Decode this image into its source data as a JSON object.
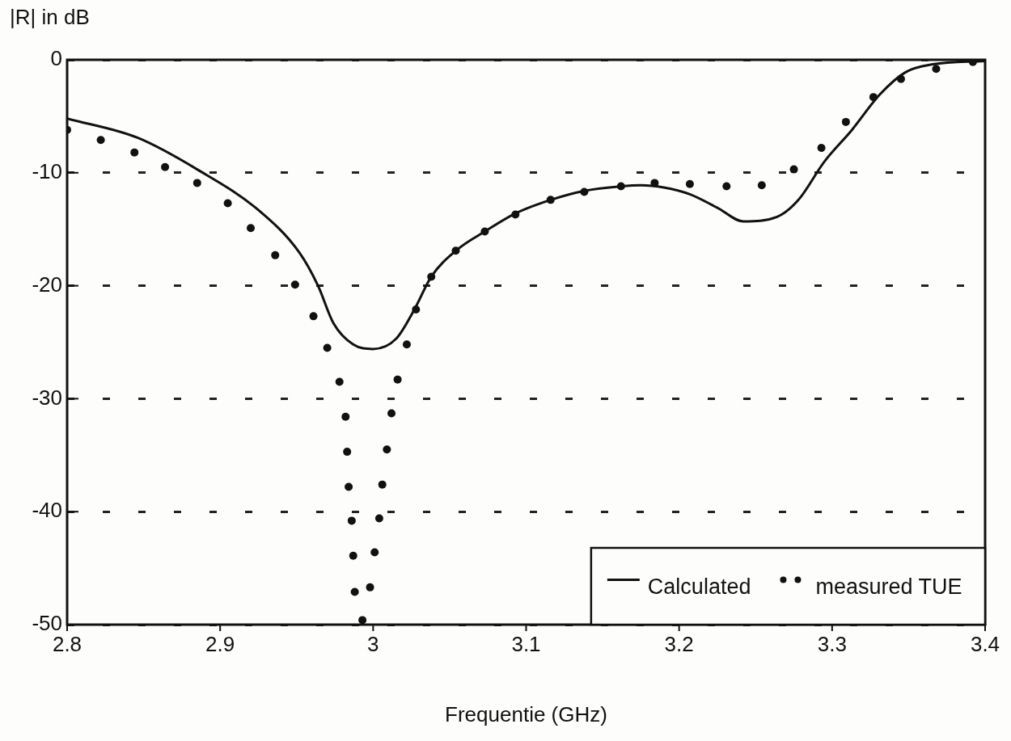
{
  "chart_data": {
    "type": "line",
    "xlabel": "Frequentie (GHz)",
    "ylabel": "|R| in dB",
    "xlim": [
      2.8,
      3.4
    ],
    "xticks": [
      2.8,
      2.9,
      3,
      3.1,
      3.2,
      3.3,
      3.4
    ],
    "ylim": [
      -50,
      0
    ],
    "yticks": [
      -50,
      -40,
      -30,
      -20,
      -10,
      0
    ],
    "grid": "y",
    "legend": "bottom right",
    "series": [
      {
        "name": "Calculated",
        "color": "#111111",
        "marker": "none",
        "line_style": "solid",
        "x": [
          2.8,
          2.846,
          2.885,
          2.925,
          2.952,
          2.964,
          2.974,
          2.987,
          3.0,
          3.015,
          3.027,
          3.038,
          3.055,
          3.073,
          3.093,
          3.116,
          3.138,
          3.162,
          3.175,
          3.19,
          3.207,
          3.225,
          3.242,
          3.264,
          3.278,
          3.295,
          3.313,
          3.331,
          3.348,
          3.366,
          3.4
        ],
        "values": [
          -5.2,
          -6.9,
          -9.7,
          -13.3,
          -17.1,
          -20,
          -23.3,
          -25.2,
          -25.6,
          -24.7,
          -22.1,
          -19.2,
          -16.8,
          -15.2,
          -13.6,
          -12.4,
          -11.6,
          -11.2,
          -11.1,
          -11.3,
          -11.9,
          -13.1,
          -14.3,
          -13.9,
          -12.4,
          -9,
          -6.2,
          -3.1,
          -1.1,
          -0.4,
          -0.1
        ]
      },
      {
        "name": "measured TUE",
        "type": "scatter",
        "color": "#111111",
        "marker": "circle",
        "x": [
          2.8,
          2.822,
          2.844,
          2.864,
          2.885,
          2.905,
          2.92,
          2.936,
          2.949,
          2.961,
          2.97,
          2.978,
          2.982,
          2.983,
          2.984,
          2.986,
          2.987,
          2.988,
          2.993,
          2.998,
          3.001,
          3.004,
          3.006,
          3.009,
          3.012,
          3.016,
          3.022,
          3.028,
          3.038,
          3.054,
          3.073,
          3.093,
          3.116,
          3.138,
          3.162,
          3.184,
          3.207,
          3.231,
          3.254,
          3.275,
          3.293,
          3.309,
          3.327,
          3.345,
          3.368,
          3.392
        ],
        "values": [
          -6.2,
          -7.1,
          -8.2,
          -9.5,
          -10.9,
          -12.7,
          -14.9,
          -17.3,
          -19.9,
          -22.7,
          -25.5,
          -28.5,
          -31.6,
          -34.7,
          -37.8,
          -40.8,
          -43.9,
          -47.1,
          -49.6,
          -46.7,
          -43.6,
          -40.6,
          -37.6,
          -34.5,
          -31.3,
          -28.3,
          -25.2,
          -22.1,
          -19.2,
          -16.9,
          -15.2,
          -13.7,
          -12.4,
          -11.7,
          -11.2,
          -10.9,
          -11,
          -11.2,
          -11.1,
          -9.7,
          -7.8,
          -5.5,
          -3.3,
          -1.7,
          -0.8,
          -0.2
        ]
      }
    ]
  }
}
